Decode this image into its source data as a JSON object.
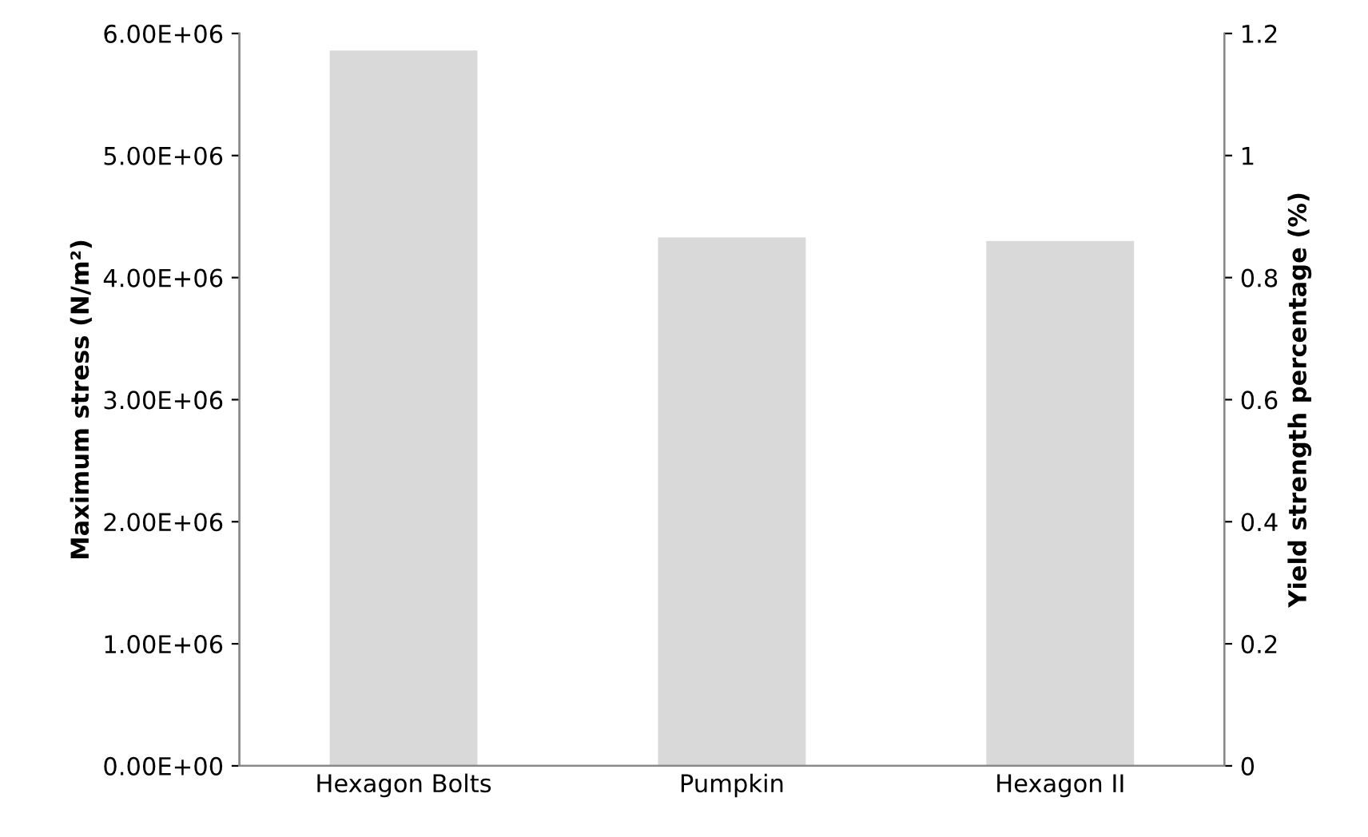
{
  "chart_data": {
    "type": "bar",
    "ylabel": "Maximum stress (N/m²)",
    "y2label": "Yield strength percentage (%)",
    "categories": [
      "Hexagon Bolts",
      "Pumpkin",
      "Hexagon II"
    ],
    "series": [
      {
        "color": "#d9d9d9",
        "values": [
          5860000,
          4330000,
          4300000
        ]
      }
    ],
    "ylim": [
      0,
      6000000
    ],
    "yticks": [
      {
        "value": 0,
        "label": "0.00E+00"
      },
      {
        "value": 1000000,
        "label": "1.00E+06"
      },
      {
        "value": 2000000,
        "label": "2.00E+06"
      },
      {
        "value": 3000000,
        "label": "3.00E+06"
      },
      {
        "value": 4000000,
        "label": "4.00E+06"
      },
      {
        "value": 5000000,
        "label": "5.00E+06"
      },
      {
        "value": 6000000,
        "label": "6.00E+06"
      }
    ],
    "y2lim": [
      0,
      1.2
    ],
    "y2ticks": [
      0,
      0.2,
      0.4,
      0.6,
      0.8,
      1,
      1.2
    ],
    "grid": false,
    "legend": false
  }
}
